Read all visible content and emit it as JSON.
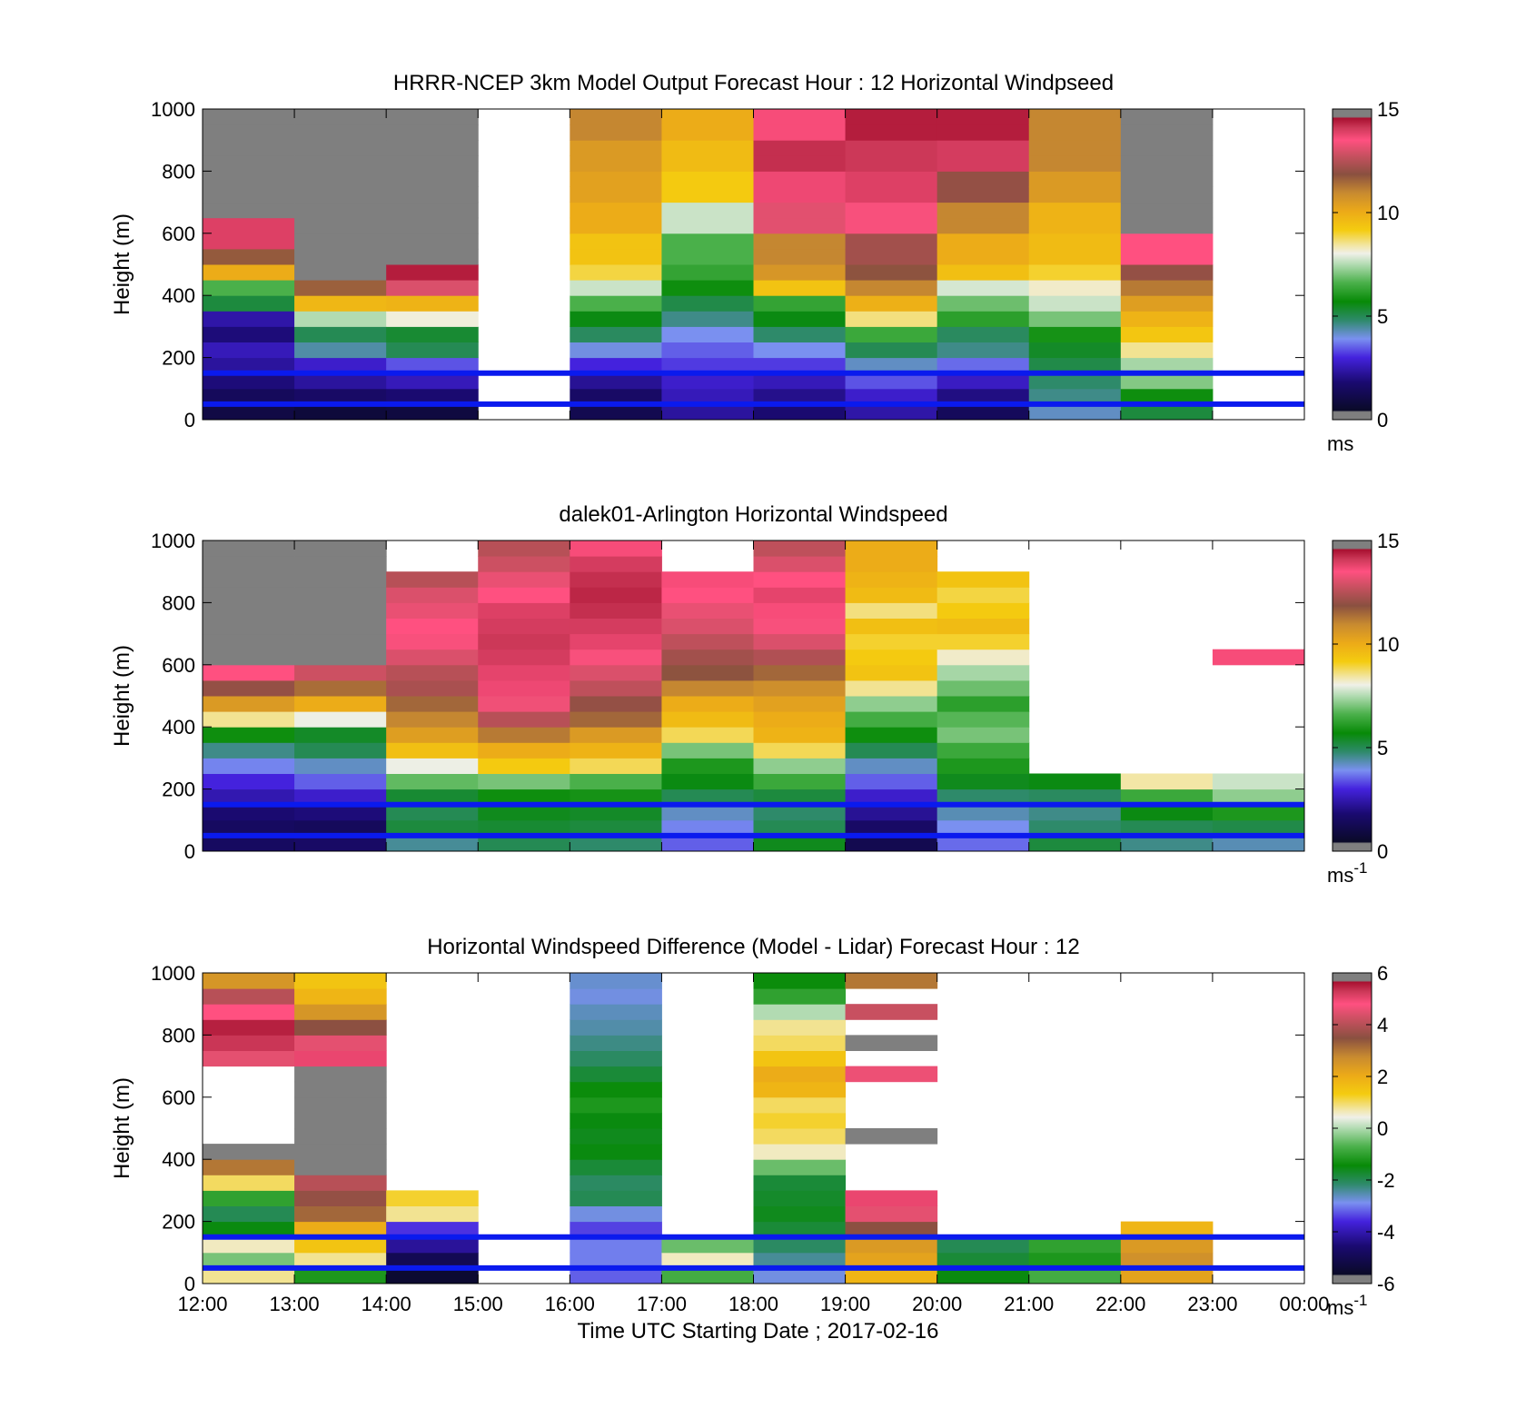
{
  "chart_data": [
    {
      "type": "heatmap",
      "title": "HRRR-NCEP 3km Model Output   Forecast Hour : 12 Horizontal Windpseed",
      "ylabel": "Height (m)",
      "xlabel": "",
      "ylim": [
        0,
        1000
      ],
      "yticks": [
        "0",
        "200",
        "400",
        "600",
        "800",
        "1000"
      ],
      "colorbar": {
        "min": 0,
        "max": 15,
        "ticks": [
          "0",
          "5",
          "10",
          "15"
        ],
        "unit": "ms",
        "unit_sup": ""
      },
      "blue_lines_m": [
        50,
        150
      ],
      "hours": [
        12,
        13,
        14,
        15,
        16,
        17,
        18,
        19,
        20,
        21,
        22,
        23
      ],
      "levels_m": [
        25,
        75,
        125,
        175,
        225,
        275,
        325,
        375,
        425,
        475,
        525,
        575,
        625,
        675,
        725,
        775,
        825,
        875,
        925,
        975
      ],
      "values": [
        [
          1.0,
          1.4,
          1.9,
          2.3,
          2.6,
          1.9,
          2.4,
          5.2,
          6.6,
          10.0,
          11.7,
          13.9,
          13.9,
          15.0,
          15.0,
          15.0,
          15.0,
          15.0,
          15.0,
          15.0
        ],
        [
          0.8,
          1.6,
          2.3,
          2.8,
          4.4,
          5.0,
          7.5,
          9.7,
          11.6,
          14.7,
          15.0,
          15.0,
          15.0,
          15.0,
          15.0,
          15.0,
          15.0,
          15.0,
          15.0,
          15.0
        ],
        [
          0.9,
          1.8,
          2.6,
          3.4,
          5.0,
          5.3,
          8.1,
          9.8,
          13.0,
          14.4,
          15.0,
          15.0,
          15.0,
          15.0,
          15.0,
          15.0,
          15.0,
          15.0,
          15.0,
          15.0
        ],
        [
          null,
          null,
          null,
          null,
          null,
          null,
          null,
          null,
          null,
          null,
          null,
          null,
          null,
          null,
          null,
          null,
          null,
          null,
          null,
          null
        ],
        [
          1.2,
          1.6,
          2.2,
          3.0,
          4.0,
          4.9,
          5.6,
          6.6,
          7.7,
          8.9,
          9.4,
          9.4,
          10.0,
          10.0,
          10.3,
          10.3,
          10.5,
          10.5,
          11.0,
          11.0
        ],
        [
          2.3,
          2.6,
          2.8,
          3.2,
          3.5,
          3.9,
          4.6,
          5.1,
          5.8,
          6.3,
          6.6,
          6.6,
          7.7,
          7.7,
          9.2,
          9.2,
          9.6,
          9.6,
          10.0,
          10.0
        ],
        [
          1.8,
          2.1,
          2.6,
          3.2,
          3.9,
          4.8,
          5.6,
          6.3,
          9.4,
          10.6,
          11.0,
          11.0,
          13.1,
          13.1,
          13.7,
          13.7,
          14.2,
          14.2,
          13.6,
          13.6
        ],
        [
          2.4,
          2.8,
          3.4,
          4.2,
          5.0,
          6.4,
          8.6,
          9.9,
          11.0,
          11.8,
          12.2,
          12.2,
          13.4,
          13.4,
          13.9,
          13.9,
          14.1,
          14.1,
          14.4,
          14.4
        ],
        [
          1.4,
          2.0,
          2.7,
          3.6,
          4.6,
          4.9,
          6.2,
          6.9,
          7.8,
          9.5,
          10.0,
          10.0,
          11.0,
          11.0,
          12.0,
          12.0,
          14.0,
          14.0,
          14.4,
          14.4
        ],
        [
          4.2,
          4.6,
          4.8,
          5.1,
          5.4,
          5.9,
          7.0,
          7.7,
          8.2,
          9.0,
          9.6,
          9.6,
          9.8,
          9.8,
          10.5,
          10.5,
          11.0,
          11.0,
          11.0,
          11.0
        ],
        [
          5.2,
          5.8,
          7.1,
          7.4,
          8.5,
          9.3,
          9.8,
          10.4,
          11.2,
          12.0,
          13.5,
          13.5,
          14.8,
          14.8,
          15.0,
          15.0,
          15.0,
          15.0,
          15.0,
          15.0
        ],
        [
          null,
          null,
          null,
          null,
          null,
          null,
          null,
          null,
          null,
          null,
          null,
          null,
          null,
          null,
          null,
          null,
          null,
          null,
          null,
          null
        ]
      ]
    },
    {
      "type": "heatmap",
      "title": "dalek01-Arlington  Horizontal Windspeed",
      "ylabel": "Height (m)",
      "xlabel": "",
      "ylim": [
        0,
        1000
      ],
      "yticks": [
        "0",
        "200",
        "400",
        "600",
        "800",
        "1000"
      ],
      "colorbar": {
        "min": 0,
        "max": 15,
        "ticks": [
          "0",
          "5",
          "10",
          "15"
        ],
        "unit": "ms",
        "unit_sup": "-1"
      },
      "blue_lines_m": [
        50,
        150
      ],
      "hours": [
        12,
        13,
        14,
        15,
        16,
        17,
        18,
        19,
        20,
        21,
        22,
        23
      ],
      "levels_m": [
        25,
        75,
        125,
        175,
        225,
        275,
        325,
        375,
        425,
        475,
        525,
        575,
        625,
        675,
        725,
        775,
        825,
        875,
        925,
        975
      ],
      "values": [
        [
          1.5,
          1.5,
          1.8,
          2.5,
          3.0,
          3.8,
          4.6,
          5.8,
          8.5,
          10.5,
          12.0,
          13.5,
          15.0,
          15.0,
          15.0,
          15.0,
          15.0,
          15.0,
          15.0,
          15.0
        ],
        [
          1.6,
          1.4,
          1.9,
          2.8,
          3.5,
          4.2,
          5.0,
          5.4,
          8.0,
          10.0,
          11.4,
          12.8,
          15.0,
          15.0,
          15.0,
          15.0,
          15.0,
          15.0,
          15.0,
          15.0
        ],
        [
          4.5,
          5.2,
          5.0,
          5.3,
          6.8,
          8.0,
          9.5,
          10.4,
          11.0,
          11.5,
          12.3,
          12.5,
          13.0,
          13.4,
          13.5,
          13.2,
          13.0,
          12.5,
          null,
          null
        ],
        [
          5.0,
          5.3,
          5.5,
          5.8,
          7.0,
          9.2,
          10.0,
          11.2,
          12.5,
          13.3,
          13.7,
          13.8,
          14.0,
          14.1,
          14.0,
          13.9,
          13.5,
          13.2,
          12.8,
          12.5
        ],
        [
          4.8,
          5.2,
          5.4,
          5.9,
          6.6,
          8.8,
          9.8,
          10.5,
          11.5,
          12.0,
          12.6,
          13.0,
          13.4,
          13.8,
          14.0,
          14.2,
          14.3,
          14.2,
          14.0,
          13.6
        ],
        [
          3.5,
          3.8,
          4.2,
          5.0,
          5.6,
          6.0,
          7.0,
          8.8,
          9.6,
          10.0,
          11.0,
          11.8,
          12.2,
          12.6,
          13.0,
          13.2,
          13.5,
          13.6,
          null,
          null
        ],
        [
          5.5,
          5.0,
          4.8,
          5.2,
          6.4,
          7.2,
          8.8,
          9.8,
          10.0,
          10.3,
          10.8,
          11.5,
          12.4,
          13.0,
          13.4,
          13.6,
          13.8,
          13.5,
          13.0,
          12.6
        ],
        [
          1.2,
          1.6,
          2.2,
          2.8,
          3.5,
          4.2,
          5.0,
          5.8,
          6.5,
          7.2,
          8.5,
          9.4,
          9.2,
          9.0,
          9.5,
          8.6,
          9.6,
          9.8,
          10.0,
          10.0
        ],
        [
          3.6,
          3.9,
          4.3,
          4.8,
          5.5,
          6.0,
          6.4,
          7.0,
          6.7,
          6.2,
          6.9,
          7.4,
          8.2,
          9.0,
          9.6,
          9.2,
          8.9,
          9.4,
          null,
          null
        ],
        [
          5.2,
          4.8,
          4.6,
          4.9,
          5.6,
          null,
          null,
          null,
          null,
          null,
          null,
          null,
          null,
          null,
          null,
          null,
          null,
          null,
          null,
          null
        ],
        [
          4.6,
          5.0,
          5.6,
          6.4,
          8.4,
          null,
          null,
          null,
          null,
          null,
          null,
          null,
          null,
          null,
          null,
          null,
          null,
          null,
          null,
          null
        ],
        [
          4.3,
          5.1,
          6.0,
          7.2,
          7.7,
          null,
          null,
          null,
          null,
          null,
          null,
          null,
          13.6,
          null,
          null,
          null,
          null,
          null,
          null,
          null
        ]
      ]
    },
    {
      "type": "heatmap",
      "title": "Horizontal Windspeed Difference (Model - Lidar) Forecast Hour : 12",
      "ylabel": "Height (m)",
      "xlabel": "Time UTC  Starting Date ; 2017-02-16",
      "ylim": [
        0,
        1000
      ],
      "yticks": [
        "0",
        "200",
        "400",
        "600",
        "800",
        "1000"
      ],
      "xticks": [
        "12:00",
        "13:00",
        "14:00",
        "15:00",
        "16:00",
        "17:00",
        "18:00",
        "19:00",
        "20:00",
        "21:00",
        "22:00",
        "23:00",
        "00:00"
      ],
      "colorbar": {
        "min": -6,
        "max": 6,
        "ticks": [
          "-6",
          "-4",
          "-2",
          "0",
          "2",
          "4",
          "6"
        ],
        "unit": "ms",
        "unit_sup": "-1"
      },
      "blue_lines_m": [
        50,
        150
      ],
      "hours": [
        12,
        13,
        14,
        15,
        16,
        17,
        18,
        19,
        20,
        21,
        22,
        23
      ],
      "levels_m": [
        25,
        75,
        125,
        175,
        225,
        275,
        325,
        375,
        425,
        475,
        525,
        575,
        625,
        675,
        725,
        775,
        825,
        875,
        925,
        975
      ],
      "values": [
        [
          0.8,
          -0.4,
          0.6,
          -1.5,
          -2.0,
          -1.0,
          1.0,
          3.0,
          6.0,
          null,
          null,
          null,
          null,
          null,
          4.5,
          5.3,
          5.5,
          4.8,
          4.0,
          2.5
        ],
        [
          -1.2,
          0.8,
          1.5,
          2.0,
          3.2,
          3.6,
          4.0,
          6.0,
          6.0,
          6.0,
          6.0,
          6.0,
          6.0,
          6.0,
          5.0,
          4.5,
          3.5,
          2.5,
          1.8,
          1.5
        ],
        [
          -5.5,
          -5.0,
          -4.2,
          -3.5,
          0.8,
          1.2,
          null,
          null,
          null,
          null,
          null,
          null,
          null,
          null,
          null,
          null,
          null,
          null,
          null,
          null
        ],
        [
          null,
          null,
          null,
          null,
          null,
          null,
          null,
          null,
          null,
          null,
          null,
          null,
          null,
          null,
          null,
          null,
          null,
          null,
          null,
          null
        ],
        [
          -3.2,
          -3.0,
          -3.0,
          -3.4,
          -2.8,
          -2.0,
          -2.1,
          -1.8,
          -1.5,
          -1.6,
          -1.5,
          -1.2,
          -1.4,
          -1.8,
          -2.1,
          -2.3,
          -2.5,
          -2.6,
          -2.8,
          -2.7
        ],
        [
          -0.8,
          0.6,
          -0.5,
          null,
          null,
          null,
          null,
          null,
          null,
          null,
          null,
          null,
          null,
          null,
          null,
          null,
          null,
          null,
          null,
          null
        ],
        [
          -2.8,
          -2.4,
          -2.1,
          -1.8,
          -1.6,
          -1.7,
          -1.8,
          -0.5,
          0.6,
          1.0,
          1.2,
          1.0,
          1.8,
          2.0,
          1.5,
          1.0,
          0.8,
          0.0,
          -1.0,
          -1.4
        ],
        [
          1.8,
          2.2,
          2.4,
          3.5,
          4.5,
          5.0,
          null,
          null,
          null,
          6.0,
          null,
          null,
          null,
          4.6,
          null,
          6.0,
          null,
          4.2,
          null,
          3.0
        ],
        [
          -1.5,
          -1.8,
          -2.0,
          null,
          null,
          null,
          null,
          null,
          null,
          null,
          null,
          null,
          null,
          null,
          null,
          null,
          null,
          null,
          null,
          null
        ],
        [
          -0.8,
          -1.2,
          -1.0,
          null,
          null,
          null,
          null,
          null,
          null,
          null,
          null,
          null,
          null,
          null,
          null,
          null,
          null,
          null,
          null,
          null
        ],
        [
          2.2,
          2.6,
          2.4,
          1.8,
          null,
          null,
          null,
          null,
          null,
          null,
          null,
          null,
          null,
          null,
          null,
          null,
          null,
          null,
          null,
          null
        ],
        [
          null,
          null,
          null,
          null,
          null,
          null,
          null,
          null,
          null,
          null,
          null,
          null,
          null,
          null,
          null,
          null,
          null,
          null,
          null,
          null
        ]
      ]
    }
  ]
}
